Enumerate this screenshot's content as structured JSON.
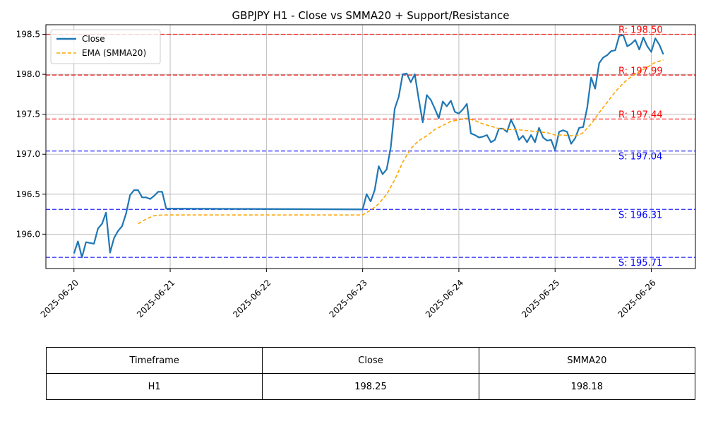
{
  "chart_data": {
    "type": "line",
    "title": "GBPJPY H1 - Close vs SMMA20 + Support/Resistance",
    "xlabel": "",
    "ylabel": "",
    "xlim": [
      "2025-06-19 17:00",
      "2025-06-26 11:00"
    ],
    "ylim": [
      195.57,
      198.62
    ],
    "x_ticks": [
      "2025-06-20",
      "2025-06-21",
      "2025-06-22",
      "2025-06-23",
      "2025-06-24",
      "2025-06-25",
      "2025-06-26"
    ],
    "y_ticks": [
      196.0,
      196.5,
      197.0,
      197.5,
      198.0,
      198.5
    ],
    "y_tick_labels": [
      "196.0",
      "196.5",
      "197.0",
      "197.5",
      "198.0",
      "198.5"
    ],
    "grid": true,
    "legend_position": "top-left",
    "series": [
      {
        "name": "Close",
        "color": "#1f77b4",
        "style": "solid",
        "points": [
          [
            "2025-06-20 00:00",
            195.76
          ],
          [
            "2025-06-20 01:00",
            195.91
          ],
          [
            "2025-06-20 02:00",
            195.71
          ],
          [
            "2025-06-20 03:00",
            195.9
          ],
          [
            "2025-06-20 04:00",
            195.89
          ],
          [
            "2025-06-20 05:00",
            195.88
          ],
          [
            "2025-06-20 06:00",
            196.07
          ],
          [
            "2025-06-20 07:00",
            196.13
          ],
          [
            "2025-06-20 08:00",
            196.27
          ],
          [
            "2025-06-20 09:00",
            195.77
          ],
          [
            "2025-06-20 10:00",
            195.95
          ],
          [
            "2025-06-20 11:00",
            196.04
          ],
          [
            "2025-06-20 12:00",
            196.1
          ],
          [
            "2025-06-20 13:00",
            196.26
          ],
          [
            "2025-06-20 14:00",
            196.49
          ],
          [
            "2025-06-20 15:00",
            196.55
          ],
          [
            "2025-06-20 16:00",
            196.55
          ],
          [
            "2025-06-20 17:00",
            196.46
          ],
          [
            "2025-06-20 18:00",
            196.46
          ],
          [
            "2025-06-20 19:00",
            196.44
          ],
          [
            "2025-06-20 20:00",
            196.48
          ],
          [
            "2025-06-20 21:00",
            196.53
          ],
          [
            "2025-06-20 22:00",
            196.53
          ],
          [
            "2025-06-20 23:00",
            196.32
          ],
          [
            "2025-06-23 00:00",
            196.31
          ],
          [
            "2025-06-23 01:00",
            196.5
          ],
          [
            "2025-06-23 02:00",
            196.41
          ],
          [
            "2025-06-23 03:00",
            196.55
          ],
          [
            "2025-06-23 04:00",
            196.85
          ],
          [
            "2025-06-23 05:00",
            196.75
          ],
          [
            "2025-06-23 06:00",
            196.81
          ],
          [
            "2025-06-23 07:00",
            197.08
          ],
          [
            "2025-06-23 08:00",
            197.57
          ],
          [
            "2025-06-23 09:00",
            197.72
          ],
          [
            "2025-06-23 10:00",
            198.0
          ],
          [
            "2025-06-23 11:00",
            198.01
          ],
          [
            "2025-06-23 12:00",
            197.9
          ],
          [
            "2025-06-23 13:00",
            198.0
          ],
          [
            "2025-06-23 14:00",
            197.69
          ],
          [
            "2025-06-23 15:00",
            197.4
          ],
          [
            "2025-06-23 16:00",
            197.74
          ],
          [
            "2025-06-23 17:00",
            197.68
          ],
          [
            "2025-06-23 18:00",
            197.57
          ],
          [
            "2025-06-23 19:00",
            197.45
          ],
          [
            "2025-06-23 20:00",
            197.66
          ],
          [
            "2025-06-23 21:00",
            197.6
          ],
          [
            "2025-06-23 22:00",
            197.67
          ],
          [
            "2025-06-23 23:00",
            197.53
          ],
          [
            "2025-06-24 00:00",
            197.51
          ],
          [
            "2025-06-24 01:00",
            197.56
          ],
          [
            "2025-06-24 02:00",
            197.63
          ],
          [
            "2025-06-24 03:00",
            197.26
          ],
          [
            "2025-06-24 04:00",
            197.24
          ],
          [
            "2025-06-24 05:00",
            197.21
          ],
          [
            "2025-06-24 06:00",
            197.22
          ],
          [
            "2025-06-24 07:00",
            197.24
          ],
          [
            "2025-06-24 08:00",
            197.15
          ],
          [
            "2025-06-24 09:00",
            197.18
          ],
          [
            "2025-06-24 10:00",
            197.32
          ],
          [
            "2025-06-24 11:00",
            197.32
          ],
          [
            "2025-06-24 12:00",
            197.28
          ],
          [
            "2025-06-24 13:00",
            197.43
          ],
          [
            "2025-06-24 14:00",
            197.33
          ],
          [
            "2025-06-24 15:00",
            197.18
          ],
          [
            "2025-06-24 16:00",
            197.23
          ],
          [
            "2025-06-24 17:00",
            197.15
          ],
          [
            "2025-06-24 18:00",
            197.24
          ],
          [
            "2025-06-24 19:00",
            197.15
          ],
          [
            "2025-06-24 20:00",
            197.33
          ],
          [
            "2025-06-24 21:00",
            197.21
          ],
          [
            "2025-06-24 22:00",
            197.17
          ],
          [
            "2025-06-24 23:00",
            197.18
          ],
          [
            "2025-06-25 00:00",
            197.05
          ],
          [
            "2025-06-25 01:00",
            197.28
          ],
          [
            "2025-06-25 02:00",
            197.3
          ],
          [
            "2025-06-25 03:00",
            197.28
          ],
          [
            "2025-06-25 04:00",
            197.13
          ],
          [
            "2025-06-25 05:00",
            197.2
          ],
          [
            "2025-06-25 06:00",
            197.33
          ],
          [
            "2025-06-25 07:00",
            197.34
          ],
          [
            "2025-06-25 08:00",
            197.58
          ],
          [
            "2025-06-25 09:00",
            197.96
          ],
          [
            "2025-06-25 10:00",
            197.82
          ],
          [
            "2025-06-25 11:00",
            198.14
          ],
          [
            "2025-06-25 12:00",
            198.21
          ],
          [
            "2025-06-25 13:00",
            198.24
          ],
          [
            "2025-06-25 14:00",
            198.29
          ],
          [
            "2025-06-25 15:00",
            198.3
          ],
          [
            "2025-06-25 16:00",
            198.48
          ],
          [
            "2025-06-25 17:00",
            198.49
          ],
          [
            "2025-06-25 18:00",
            198.35
          ],
          [
            "2025-06-25 19:00",
            198.38
          ],
          [
            "2025-06-25 20:00",
            198.43
          ],
          [
            "2025-06-25 21:00",
            198.31
          ],
          [
            "2025-06-25 22:00",
            198.46
          ],
          [
            "2025-06-25 23:00",
            198.35
          ],
          [
            "2025-06-26 00:00",
            198.28
          ],
          [
            "2025-06-26 01:00",
            198.45
          ],
          [
            "2025-06-26 02:00",
            198.37
          ],
          [
            "2025-06-26 03:00",
            198.25
          ]
        ]
      },
      {
        "name": "EMA (SMMA20)",
        "color": "#ffa500",
        "style": "dashed",
        "points": [
          [
            "2025-06-20 16:00",
            196.13
          ],
          [
            "2025-06-20 18:00",
            196.19
          ],
          [
            "2025-06-20 20:00",
            196.23
          ],
          [
            "2025-06-20 22:00",
            196.24
          ],
          [
            "2025-06-21 02:00",
            196.24
          ],
          [
            "2025-06-23 00:00",
            196.24
          ],
          [
            "2025-06-23 02:00",
            196.3
          ],
          [
            "2025-06-23 04:00",
            196.38
          ],
          [
            "2025-06-23 05:00",
            196.44
          ],
          [
            "2025-06-23 06:00",
            196.5
          ],
          [
            "2025-06-23 08:00",
            196.68
          ],
          [
            "2025-06-23 10:00",
            196.9
          ],
          [
            "2025-06-23 12:00",
            197.07
          ],
          [
            "2025-06-23 14:00",
            197.17
          ],
          [
            "2025-06-23 16:00",
            197.23
          ],
          [
            "2025-06-23 18:00",
            197.31
          ],
          [
            "2025-06-23 20:00",
            197.36
          ],
          [
            "2025-06-23 22:00",
            197.41
          ],
          [
            "2025-06-24 00:00",
            197.43
          ],
          [
            "2025-06-24 02:00",
            197.45
          ],
          [
            "2025-06-24 04:00",
            197.42
          ],
          [
            "2025-06-24 06:00",
            197.38
          ],
          [
            "2025-06-24 08:00",
            197.35
          ],
          [
            "2025-06-24 10:00",
            197.32
          ],
          [
            "2025-06-24 12:00",
            197.31
          ],
          [
            "2025-06-24 14:00",
            197.31
          ],
          [
            "2025-06-24 16:00",
            197.3
          ],
          [
            "2025-06-24 18:00",
            197.29
          ],
          [
            "2025-06-24 20:00",
            197.28
          ],
          [
            "2025-06-24 22:00",
            197.27
          ],
          [
            "2025-06-25 00:00",
            197.24
          ],
          [
            "2025-06-25 02:00",
            197.24
          ],
          [
            "2025-06-25 04:00",
            197.23
          ],
          [
            "2025-06-25 06:00",
            197.24
          ],
          [
            "2025-06-25 07:00",
            197.27
          ],
          [
            "2025-06-25 09:00",
            197.38
          ],
          [
            "2025-06-25 11:00",
            197.52
          ],
          [
            "2025-06-25 13:00",
            197.65
          ],
          [
            "2025-06-25 15:00",
            197.78
          ],
          [
            "2025-06-25 17:00",
            197.89
          ],
          [
            "2025-06-25 19:00",
            197.97
          ],
          [
            "2025-06-25 21:00",
            198.03
          ],
          [
            "2025-06-25 23:00",
            198.09
          ],
          [
            "2025-06-26 01:00",
            198.15
          ],
          [
            "2025-06-26 03:00",
            198.18
          ]
        ]
      }
    ],
    "levels": [
      {
        "kind": "resistance",
        "value": 198.5,
        "label": "R: 198.50",
        "color": "#ff0000"
      },
      {
        "kind": "resistance",
        "value": 197.99,
        "label": "R: 197.99",
        "color": "#ff0000"
      },
      {
        "kind": "resistance",
        "value": 197.44,
        "label": "R: 197.44",
        "color": "#ff0000"
      },
      {
        "kind": "support",
        "value": 197.04,
        "label": "S: 197.04",
        "color": "#0000ff"
      },
      {
        "kind": "support",
        "value": 196.31,
        "label": "S: 196.31",
        "color": "#0000ff"
      },
      {
        "kind": "support",
        "value": 195.71,
        "label": "S: 195.71",
        "color": "#0000ff"
      }
    ]
  },
  "table": {
    "headers": [
      "Timeframe",
      "Close",
      "SMMA20"
    ],
    "row": [
      "H1",
      "198.25",
      "198.18"
    ]
  }
}
